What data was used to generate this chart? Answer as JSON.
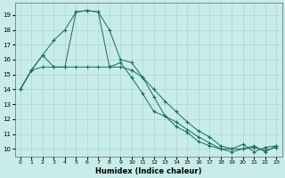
{
  "background_color": "#c8ece9",
  "grid_color": "#add6d0",
  "line_color": "#1a6b5a",
  "xlabel": "Humidex (Indice chaleur)",
  "xlim": [
    -0.5,
    23.5
  ],
  "ylim": [
    9.5,
    19.8
  ],
  "yticks": [
    10,
    11,
    12,
    13,
    14,
    15,
    16,
    17,
    18,
    19
  ],
  "xticks": [
    0,
    1,
    2,
    3,
    4,
    5,
    6,
    7,
    8,
    9,
    10,
    11,
    12,
    13,
    14,
    15,
    16,
    17,
    18,
    19,
    20,
    21,
    22,
    23
  ],
  "line1_x": [
    0,
    1,
    2,
    3,
    4,
    5,
    6,
    7,
    8,
    9,
    10,
    11,
    12,
    13,
    14,
    15,
    16,
    17,
    18,
    19,
    20,
    21,
    22,
    23
  ],
  "line1_y": [
    14.0,
    15.3,
    15.5,
    15.5,
    15.5,
    15.5,
    15.5,
    15.5,
    15.5,
    15.5,
    15.3,
    14.8,
    14.0,
    13.2,
    12.5,
    11.8,
    11.2,
    10.8,
    10.2,
    10.0,
    10.0,
    10.1,
    9.9,
    10.1
  ],
  "line2_x": [
    0,
    1,
    2,
    3,
    4,
    5,
    6,
    7,
    8,
    9,
    10,
    11,
    12,
    13,
    14,
    15,
    16,
    17,
    18,
    19,
    20,
    21,
    22,
    23
  ],
  "line2_y": [
    14.0,
    15.3,
    16.3,
    17.3,
    18.0,
    19.2,
    19.3,
    19.2,
    18.0,
    16.0,
    15.8,
    14.8,
    13.5,
    12.2,
    11.8,
    11.3,
    10.8,
    10.4,
    10.0,
    9.8,
    10.0,
    10.2,
    9.8,
    10.2
  ],
  "line3_x": [
    0,
    1,
    2,
    3,
    4,
    5,
    6,
    7,
    8,
    9,
    10,
    11,
    12,
    13,
    14,
    15,
    16,
    17,
    18,
    19,
    20,
    21,
    22,
    23
  ],
  "line3_y": [
    14.0,
    15.3,
    16.3,
    15.5,
    15.5,
    19.2,
    19.3,
    19.2,
    15.5,
    15.8,
    14.8,
    13.7,
    12.5,
    12.2,
    11.5,
    11.1,
    10.5,
    10.2,
    10.0,
    10.0,
    10.3,
    9.8,
    10.1,
    10.2
  ]
}
